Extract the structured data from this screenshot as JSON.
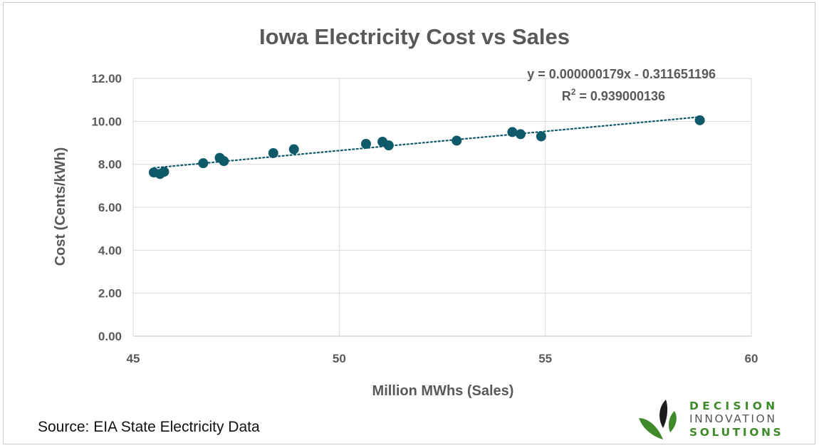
{
  "chart_data": {
    "type": "scatter",
    "title": "Iowa Electricity Cost vs Sales",
    "xlabel": "Million MWhs (Sales)",
    "ylabel": "Cost (Cents/kWh)",
    "xlim": [
      45,
      60
    ],
    "ylim": [
      0,
      12
    ],
    "x_ticks": [
      "45",
      "50",
      "55",
      "60"
    ],
    "y_ticks": [
      "0.00",
      "2.00",
      "4.00",
      "6.00",
      "8.00",
      "10.00",
      "12.00"
    ],
    "grid": true,
    "marker_color": "#0f5a6a",
    "trendline": {
      "type": "linear",
      "style": "dotted",
      "equation": "y = 0.000000179x - 0.311651196",
      "r2_label": "R",
      "r2_sup": "2",
      "r2_value": " = 0.939000136",
      "slope_per_million": 0.179,
      "intercept": -0.311651196
    },
    "points": [
      {
        "x": 45.5,
        "y": 7.62
      },
      {
        "x": 45.65,
        "y": 7.55
      },
      {
        "x": 45.75,
        "y": 7.65
      },
      {
        "x": 46.7,
        "y": 8.05
      },
      {
        "x": 47.1,
        "y": 8.3
      },
      {
        "x": 47.2,
        "y": 8.15
      },
      {
        "x": 48.4,
        "y": 8.52
      },
      {
        "x": 48.9,
        "y": 8.7
      },
      {
        "x": 50.65,
        "y": 8.95
      },
      {
        "x": 51.05,
        "y": 9.05
      },
      {
        "x": 51.2,
        "y": 8.88
      },
      {
        "x": 52.85,
        "y": 9.1
      },
      {
        "x": 54.2,
        "y": 9.5
      },
      {
        "x": 54.4,
        "y": 9.4
      },
      {
        "x": 54.9,
        "y": 9.3
      },
      {
        "x": 58.75,
        "y": 10.05
      }
    ]
  },
  "source_note": "Source: EIA State Electricity Data",
  "logo": {
    "line1": "DECISION",
    "line2": "INNOVATION",
    "line3": "SOLUTIONS"
  }
}
